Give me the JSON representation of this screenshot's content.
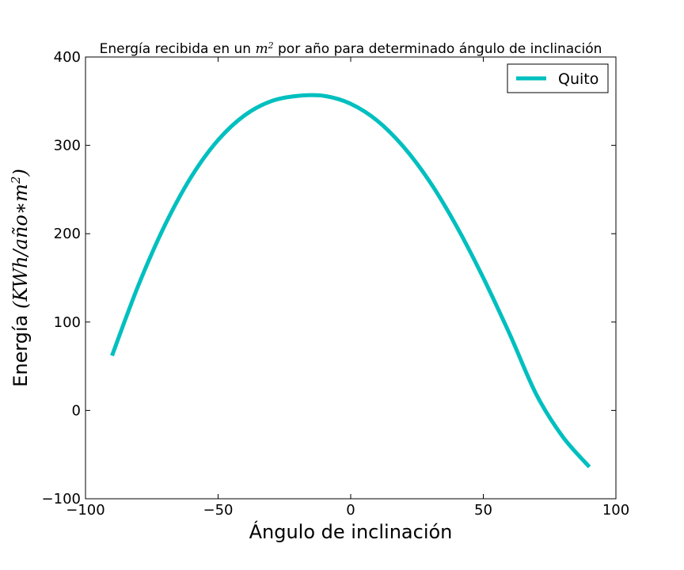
{
  "chart_data": {
    "type": "line",
    "title": {
      "prefix": "Energía recibida en un ",
      "math_base": "m",
      "math_sup": "2",
      "suffix": " por año para determinado ángulo de inclinación"
    },
    "xlabel": "Ángulo de inclinación",
    "ylabel": {
      "prefix": "Energía ",
      "math": "(KWh/año∗m",
      "math_sup": "2",
      "math_end": ")"
    },
    "xlim": [
      -100,
      100
    ],
    "ylim": [
      -100,
      400
    ],
    "xticks": [
      -100,
      -50,
      0,
      50,
      100
    ],
    "xtick_labels": [
      "−100",
      "−50",
      "0",
      "50",
      "100"
    ],
    "yticks": [
      -100,
      0,
      100,
      200,
      300,
      400
    ],
    "ytick_labels": [
      "−100",
      "0",
      "100",
      "200",
      "300",
      "400"
    ],
    "grid": false,
    "legend_position": "top-right",
    "series": [
      {
        "name": "Quito",
        "color": "#00bfbf",
        "x": [
          -90,
          -80,
          -70,
          -60,
          -50,
          -40,
          -30,
          -20,
          -10,
          0,
          10,
          20,
          30,
          40,
          50,
          60,
          70,
          80,
          90
        ],
        "y": [
          62,
          142,
          210,
          265,
          306,
          334,
          350,
          356,
          356,
          347,
          328,
          298,
          258,
          208,
          150,
          86,
          18,
          -30,
          -64
        ]
      }
    ]
  }
}
